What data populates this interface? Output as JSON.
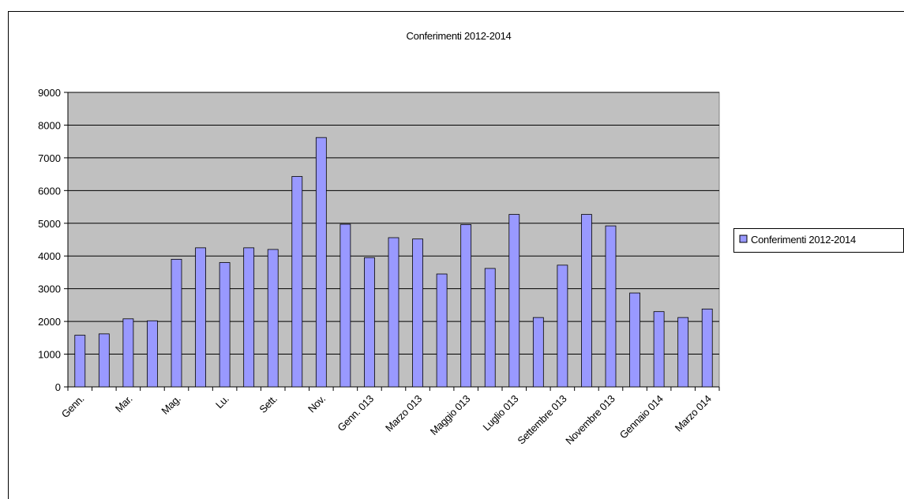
{
  "chart_data": {
    "type": "bar",
    "title": "Conferimenti 2012-2014",
    "categories": [
      "Genn.",
      null,
      "Mar.",
      null,
      "Mag.",
      null,
      "Lu.",
      null,
      "Sett.",
      null,
      "Nov.",
      null,
      "Genn. 013",
      null,
      "Marzo 013",
      null,
      "Maggio 013",
      null,
      "Luglio 013",
      null,
      "Settembre 013",
      null,
      "Novembre 013",
      null,
      "Gennaio 014",
      null,
      "Marzo 014"
    ],
    "series": [
      {
        "name": "Conferimenti 2012-2014",
        "color": "#9999ff",
        "values": [
          1580,
          1620,
          2080,
          2020,
          3900,
          4250,
          3800,
          4250,
          4200,
          6430,
          7620,
          4970,
          3950,
          4560,
          4520,
          3450,
          4960,
          3620,
          5270,
          2120,
          3720,
          5270,
          4920,
          2870,
          2300,
          2120,
          2380
        ]
      }
    ],
    "ylim": [
      0,
      9000
    ],
    "yticks": [
      0,
      1000,
      2000,
      3000,
      4000,
      5000,
      6000,
      7000,
      8000,
      9000
    ],
    "grid": true,
    "legend": "right"
  }
}
